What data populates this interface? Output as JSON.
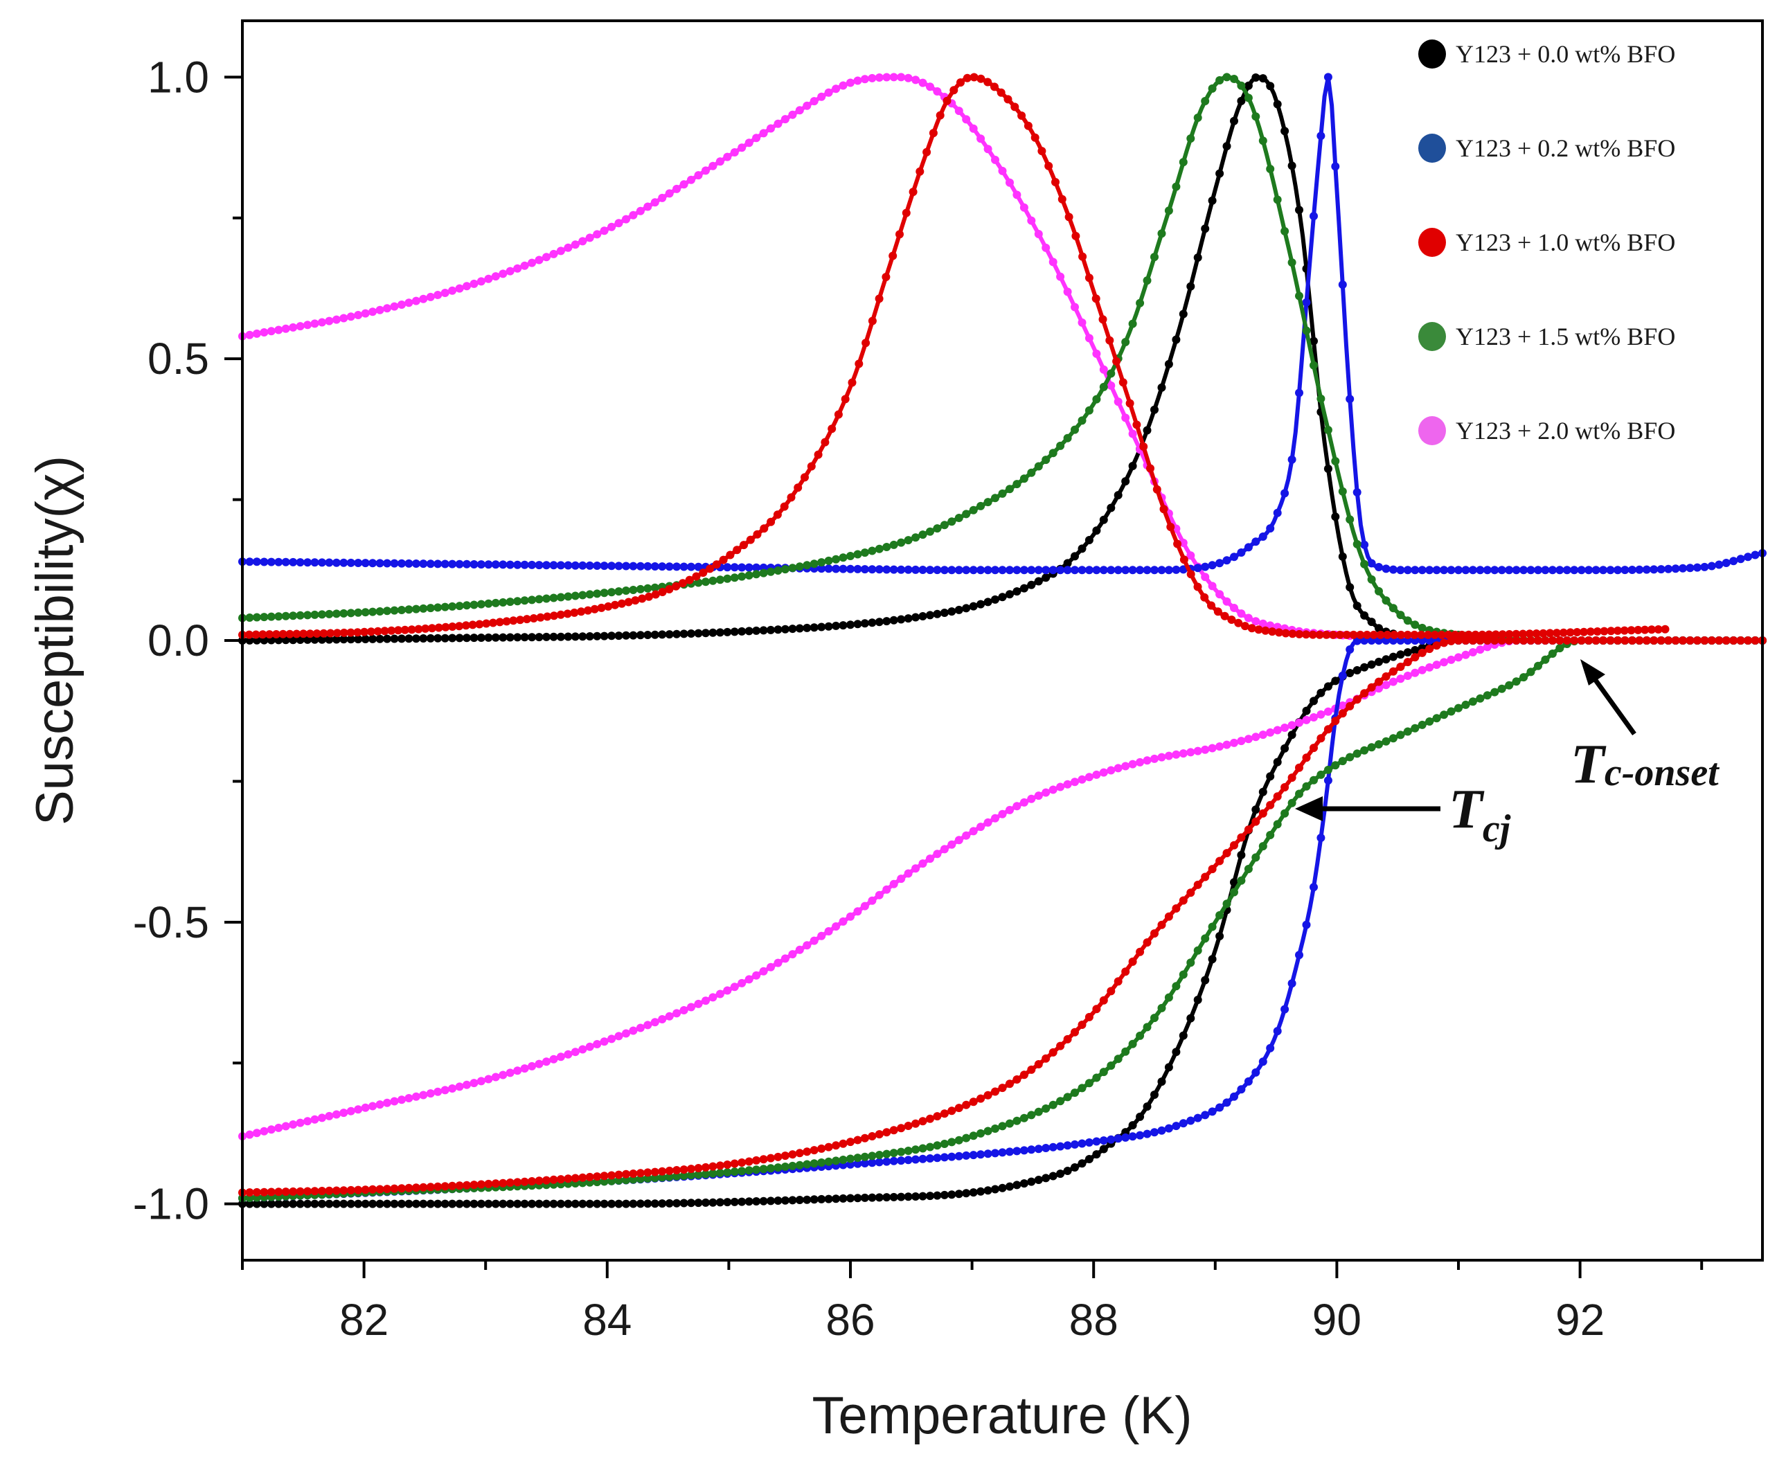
{
  "chart_data": {
    "type": "line",
    "xlabel": "Temperature (K)",
    "ylabel": "Susceptibility(χ)",
    "xlim": [
      81,
      93.5
    ],
    "ylim": [
      -1.1,
      1.1
    ],
    "xticks": [
      82,
      84,
      86,
      88,
      90,
      92
    ],
    "xtick_labels": [
      "82",
      "84",
      "86",
      "88",
      "90",
      "92"
    ],
    "yticks": [
      -1.0,
      -0.5,
      0.0,
      0.5,
      1.0
    ],
    "ytick_labels": [
      "-1.0",
      "-0.5",
      "0.0",
      "0.5",
      "1.0"
    ],
    "legend_position": "top-right",
    "grid": false,
    "series": [
      {
        "name": "Y123 + 0.0 wt% BFO",
        "color": "#000000",
        "peak_x": 89.35,
        "chi_imag": {
          "x": [
            81,
            83,
            84,
            85,
            86,
            86.5,
            87,
            87.5,
            87.8,
            88.1,
            88.4,
            88.7,
            89.0,
            89.2,
            89.35,
            89.5,
            89.7,
            89.9,
            90.1,
            90.3,
            90.5,
            91,
            93.5
          ],
          "y": [
            0.0,
            0.005,
            0.008,
            0.015,
            0.028,
            0.04,
            0.06,
            0.1,
            0.14,
            0.22,
            0.35,
            0.55,
            0.8,
            0.95,
            1.0,
            0.96,
            0.75,
            0.35,
            0.1,
            0.03,
            0.01,
            0.0,
            0.0
          ]
        },
        "chi_real": {
          "x": [
            81,
            84,
            86,
            87,
            87.5,
            87.8,
            88.1,
            88.4,
            88.7,
            89.0,
            89.3,
            89.6,
            89.8,
            90.0,
            90.2,
            90.6,
            91,
            93.5
          ],
          "y": [
            -1.0,
            -1.0,
            -0.99,
            -0.98,
            -0.96,
            -0.94,
            -0.9,
            -0.84,
            -0.72,
            -0.55,
            -0.32,
            -0.18,
            -0.11,
            -0.07,
            -0.05,
            -0.02,
            0.0,
            0.0
          ]
        }
      },
      {
        "name": "Y123 + 0.2 wt% BFO",
        "color": "#1515e6",
        "legend_marker_color": "#1f4f9a",
        "peak_x": 89.93,
        "chi_imag": {
          "x": [
            81,
            83,
            85,
            87,
            88.5,
            89.0,
            89.3,
            89.5,
            89.65,
            89.75,
            89.85,
            89.93,
            90.0,
            90.1,
            90.2,
            90.35,
            90.6,
            91,
            92,
            93,
            93.5
          ],
          "y": [
            0.14,
            0.135,
            0.13,
            0.125,
            0.125,
            0.135,
            0.17,
            0.22,
            0.35,
            0.6,
            0.85,
            1.0,
            0.8,
            0.45,
            0.2,
            0.13,
            0.125,
            0.125,
            0.125,
            0.13,
            0.155
          ]
        },
        "chi_real": {
          "x": [
            81,
            84,
            86,
            88,
            88.7,
            89.2,
            89.5,
            89.7,
            89.8,
            89.9,
            90.0,
            90.1,
            90.2,
            91,
            93.5
          ],
          "y": [
            -0.99,
            -0.96,
            -0.93,
            -0.89,
            -0.86,
            -0.8,
            -0.7,
            -0.55,
            -0.45,
            -0.3,
            -0.12,
            -0.02,
            0.0,
            0.0,
            0.0
          ]
        }
      },
      {
        "name": "Y123 + 1.0 wt% BFO",
        "color": "#e00000",
        "peak_x": 87.0,
        "chi_imag": {
          "x": [
            81,
            82,
            83,
            84,
            84.5,
            85,
            85.5,
            86,
            86.3,
            86.6,
            86.8,
            87.0,
            87.2,
            87.5,
            87.8,
            88.0,
            88.3,
            88.6,
            88.9,
            89.2,
            89.5,
            90,
            91,
            92.7
          ],
          "y": [
            0.01,
            0.015,
            0.03,
            0.06,
            0.09,
            0.15,
            0.25,
            0.45,
            0.65,
            0.85,
            0.96,
            1.0,
            0.98,
            0.9,
            0.75,
            0.62,
            0.42,
            0.22,
            0.08,
            0.03,
            0.015,
            0.01,
            0.01,
            0.02
          ]
        },
        "chi_real": {
          "x": [
            81,
            82,
            83,
            84,
            85,
            86,
            87,
            87.5,
            88,
            88.5,
            89,
            89.5,
            90,
            90.5,
            91,
            91.5,
            93.5
          ],
          "y": [
            -0.98,
            -0.975,
            -0.965,
            -0.95,
            -0.93,
            -0.89,
            -0.82,
            -0.76,
            -0.66,
            -0.52,
            -0.4,
            -0.28,
            -0.14,
            -0.05,
            0.0,
            0.0,
            0.0
          ]
        }
      },
      {
        "name": "Y123 + 1.5 wt% BFO",
        "color": "#1e7a1e",
        "legend_marker_color": "#3a8a3a",
        "peak_x": 89.1,
        "chi_imag": {
          "x": [
            81,
            82,
            83,
            84,
            85,
            86,
            86.5,
            87,
            87.5,
            88,
            88.3,
            88.6,
            88.9,
            89.1,
            89.3,
            89.6,
            89.9,
            90.2,
            90.5,
            91,
            92,
            93.5
          ],
          "y": [
            0.04,
            0.05,
            0.065,
            0.085,
            0.11,
            0.15,
            0.18,
            0.23,
            0.3,
            0.42,
            0.55,
            0.75,
            0.95,
            1.0,
            0.95,
            0.7,
            0.4,
            0.15,
            0.05,
            0.01,
            0.0,
            0.0
          ]
        },
        "chi_real": {
          "x": [
            81,
            82,
            84,
            86,
            87,
            88,
            88.5,
            89,
            89.5,
            89.7,
            90,
            90.5,
            91,
            91.5,
            92,
            93.5
          ],
          "y": [
            -0.99,
            -0.98,
            -0.96,
            -0.92,
            -0.88,
            -0.78,
            -0.67,
            -0.5,
            -0.33,
            -0.27,
            -0.22,
            -0.17,
            -0.12,
            -0.07,
            0.0,
            0.0
          ]
        }
      },
      {
        "name": "Y123 + 2.0 wt% BFO",
        "color": "#ff33ff",
        "legend_marker_color": "#ee66ee",
        "peak_x": 86.4,
        "chi_imag": {
          "x": [
            81,
            82,
            83,
            84,
            85,
            85.5,
            86,
            86.4,
            86.8,
            87.2,
            87.6,
            88.0,
            88.4,
            88.8,
            89.2,
            89.6,
            90,
            91,
            93.5
          ],
          "y": [
            0.54,
            0.58,
            0.64,
            0.73,
            0.86,
            0.93,
            0.99,
            1.0,
            0.96,
            0.85,
            0.7,
            0.52,
            0.33,
            0.15,
            0.05,
            0.02,
            0.01,
            0.0,
            0.0
          ]
        },
        "chi_real": {
          "x": [
            81,
            82,
            83,
            84,
            85,
            85.5,
            86,
            86.5,
            87,
            87.5,
            88,
            88.5,
            89,
            89.5,
            90,
            90.5,
            91,
            91.5,
            93.5
          ],
          "y": [
            -0.88,
            -0.83,
            -0.78,
            -0.71,
            -0.62,
            -0.56,
            -0.49,
            -0.41,
            -0.34,
            -0.28,
            -0.24,
            -0.21,
            -0.19,
            -0.16,
            -0.12,
            -0.07,
            -0.03,
            0.0,
            0.0
          ]
        }
      }
    ],
    "annotations": [
      {
        "text_main": "T",
        "text_sub": "c-onset",
        "point": [
          92.0,
          0.0
        ]
      },
      {
        "text_main": "T",
        "text_sub": "cj",
        "point": [
          89.7,
          -0.3
        ]
      }
    ]
  }
}
